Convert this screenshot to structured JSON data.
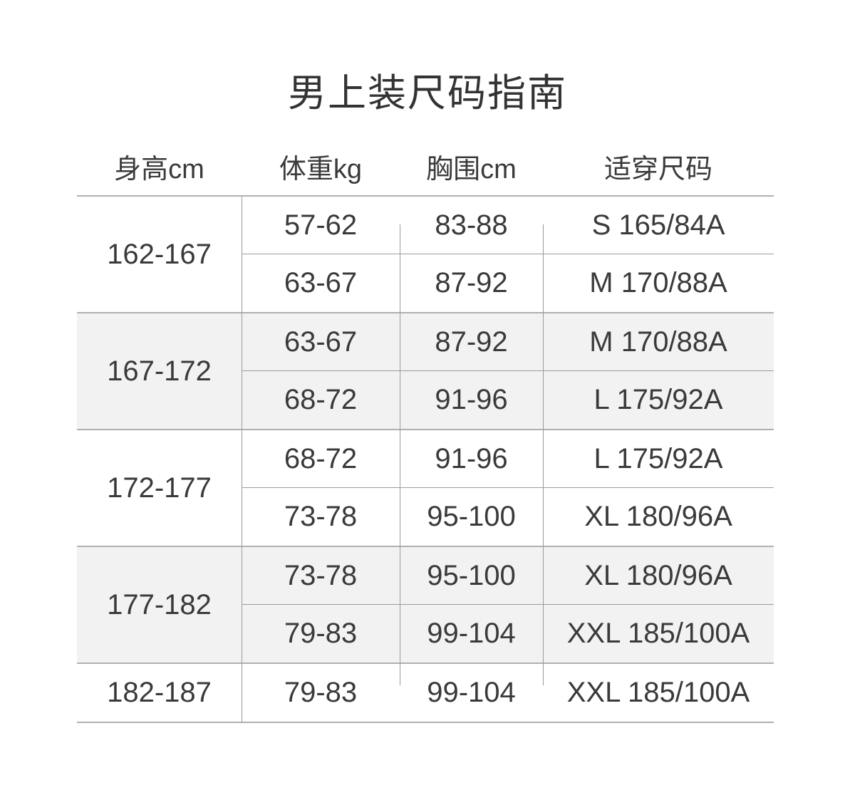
{
  "title": "男上装尺码指南",
  "columns": [
    {
      "key": "height",
      "label": "身高cm"
    },
    {
      "key": "weight",
      "label": "体重kg"
    },
    {
      "key": "chest",
      "label": "胸围cm"
    },
    {
      "key": "size",
      "label": "适穿尺码"
    }
  ],
  "table": {
    "groups": [
      {
        "height": "162-167",
        "shaded": false,
        "rows": [
          {
            "weight": "57-62",
            "chest": "83-88",
            "size": "S 165/84A"
          },
          {
            "weight": "63-67",
            "chest": "87-92",
            "size": "M 170/88A"
          }
        ]
      },
      {
        "height": "167-172",
        "shaded": true,
        "rows": [
          {
            "weight": "63-67",
            "chest": "87-92",
            "size": "M 170/88A"
          },
          {
            "weight": "68-72",
            "chest": "91-96",
            "size": "L 175/92A"
          }
        ]
      },
      {
        "height": "172-177",
        "shaded": false,
        "rows": [
          {
            "weight": "68-72",
            "chest": "91-96",
            "size": "L 175/92A"
          },
          {
            "weight": "73-78",
            "chest": "95-100",
            "size": "XL 180/96A"
          }
        ]
      },
      {
        "height": "177-182",
        "shaded": true,
        "rows": [
          {
            "weight": "73-78",
            "chest": "95-100",
            "size": "XL 180/96A"
          },
          {
            "weight": "79-83",
            "chest": "99-104",
            "size": "XXL 185/100A"
          }
        ]
      },
      {
        "height": "182-187",
        "shaded": false,
        "rows": [
          {
            "weight": "79-83",
            "chest": "99-104",
            "size": "XXL 185/100A"
          }
        ]
      }
    ]
  },
  "colors": {
    "group_border": "#b0b0b0",
    "row_separator": "#9b9b9b",
    "zebra_background": "#f2f2f2",
    "text": "#3a3a3a",
    "page_background": "#ffffff"
  }
}
